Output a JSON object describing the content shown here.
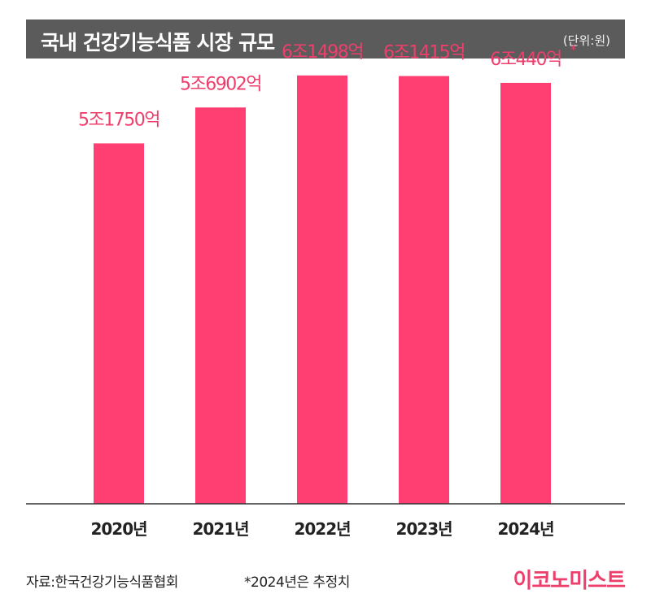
{
  "header": {
    "title": "국내 건강기능식품 시장 규모",
    "unit": "(단위:원)"
  },
  "footer": {
    "source": "자료:한국건강기능식품협회",
    "note": "*2024년은 추정치",
    "logo": "이코노미스트"
  },
  "colors": {
    "bar": "#ff3e72",
    "label": "#ee3f6c",
    "header_bg": "#5b5b5b"
  },
  "chart_data": {
    "type": "bar",
    "title": "국내 건강기능식품 시장 규모",
    "unit": "(단위:원)",
    "categories": [
      "2020년",
      "2021년",
      "2022년",
      "2023년",
      "2024년"
    ],
    "values": [
      51750,
      56902,
      61498,
      61415,
      60440
    ],
    "value_unit": "억원",
    "data_labels": [
      "5조1750억",
      "5조6902억",
      "6조1498억",
      "6조1415억",
      "6조440억"
    ],
    "estimated": [
      false,
      false,
      false,
      false,
      true
    ],
    "estimate_marker": "*",
    "ylim": [
      0,
      63000
    ],
    "grid": false,
    "legend": "none"
  }
}
